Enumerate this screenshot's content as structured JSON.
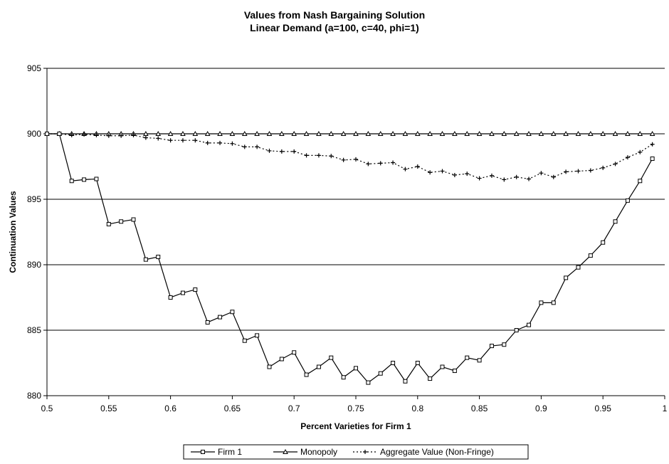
{
  "chart_data": {
    "type": "line",
    "title": "Values from Nash Bargaining Solution",
    "subtitle": "Linear Demand (a=100, c=40, phi=1)",
    "xlabel": "Percent Varieties for Firm 1",
    "ylabel": "Continuation Values",
    "xlim": [
      0.5,
      1
    ],
    "ylim": [
      880,
      905
    ],
    "x_ticks": [
      "0.5",
      "0.55",
      "0.6",
      "0.65",
      "0.7",
      "0.75",
      "0.8",
      "0.85",
      "0.9",
      "0.95",
      "1"
    ],
    "y_ticks": [
      "880",
      "885",
      "890",
      "895",
      "900",
      "905"
    ],
    "grid": "horizontal",
    "legend_position": "bottom",
    "x": [
      0.5,
      0.51,
      0.52,
      0.53,
      0.54,
      0.55,
      0.56,
      0.57,
      0.58,
      0.59,
      0.6,
      0.61,
      0.62,
      0.63,
      0.64,
      0.65,
      0.66,
      0.67,
      0.68,
      0.69,
      0.7,
      0.71,
      0.72,
      0.73,
      0.74,
      0.75,
      0.76,
      0.77,
      0.78,
      0.79,
      0.8,
      0.81,
      0.82,
      0.83,
      0.84,
      0.85,
      0.86,
      0.87,
      0.88,
      0.89,
      0.9,
      0.91,
      0.92,
      0.93,
      0.94,
      0.95,
      0.96,
      0.97,
      0.98,
      0.99
    ],
    "series": [
      {
        "name": "Firm 1",
        "marker": "square",
        "dash": "solid",
        "values": [
          900.0,
          900.0,
          896.4,
          896.5,
          896.55,
          893.1,
          893.3,
          893.45,
          890.4,
          890.6,
          887.5,
          887.85,
          888.1,
          885.6,
          886.0,
          886.4,
          884.2,
          884.6,
          882.2,
          882.8,
          883.3,
          881.6,
          882.2,
          882.9,
          881.4,
          882.1,
          881.0,
          881.7,
          882.5,
          881.1,
          882.5,
          881.3,
          882.2,
          881.9,
          882.9,
          882.7,
          883.8,
          883.9,
          885.0,
          885.4,
          887.1,
          887.1,
          889.0,
          889.8,
          890.7,
          891.7,
          893.3,
          894.9,
          896.4,
          898.1
        ]
      },
      {
        "name": "Monopoly",
        "marker": "triangle",
        "dash": "solid",
        "values": [
          900,
          900,
          900,
          900,
          900,
          900,
          900,
          900,
          900,
          900,
          900,
          900,
          900,
          900,
          900,
          900,
          900,
          900,
          900,
          900,
          900,
          900,
          900,
          900,
          900,
          900,
          900,
          900,
          900,
          900,
          900,
          900,
          900,
          900,
          900,
          900,
          900,
          900,
          900,
          900,
          900,
          900,
          900,
          900,
          900,
          900,
          900,
          900,
          900,
          900
        ]
      },
      {
        "name": "Aggregate Value (Non-Fringe)",
        "marker": "plus",
        "dash": "dotted",
        "values": [
          900.0,
          900.0,
          899.9,
          899.95,
          899.9,
          899.85,
          899.85,
          899.9,
          899.7,
          899.65,
          899.5,
          899.5,
          899.5,
          899.3,
          899.3,
          899.25,
          899.0,
          899.0,
          898.7,
          898.65,
          898.65,
          898.35,
          898.35,
          898.3,
          898.0,
          898.05,
          897.7,
          897.75,
          897.8,
          897.3,
          897.5,
          897.05,
          897.15,
          896.85,
          896.95,
          896.6,
          896.8,
          896.5,
          896.7,
          896.55,
          897.0,
          896.7,
          897.1,
          897.15,
          897.2,
          897.4,
          897.7,
          898.2,
          898.6,
          899.2
        ]
      }
    ]
  }
}
